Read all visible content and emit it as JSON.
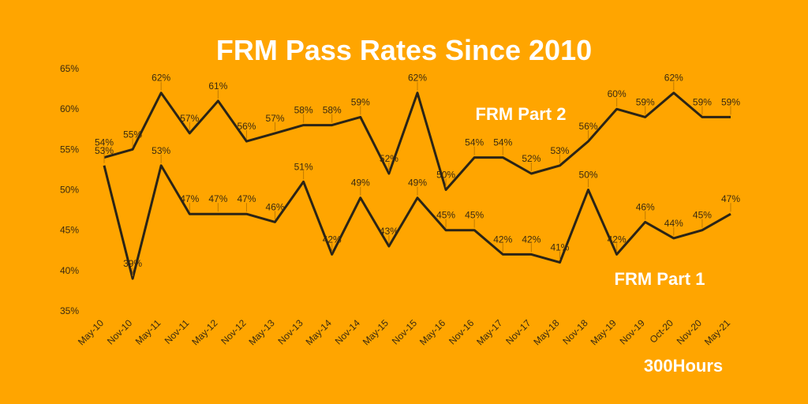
{
  "chart_data": {
    "type": "line",
    "title": "FRM Pass Rates Since 2010",
    "categories": [
      "May-10",
      "Nov-10",
      "May-11",
      "Nov-11",
      "May-12",
      "Nov-12",
      "May-13",
      "Nov-13",
      "May-14",
      "Nov-14",
      "May-15",
      "Nov-15",
      "May-16",
      "Nov-16",
      "May-17",
      "Nov-17",
      "May-18",
      "Nov-18",
      "May-19",
      "Nov-19",
      "Oct-20",
      "Nov-20",
      "May-21"
    ],
    "ylim": [
      35,
      65
    ],
    "yticks": [
      "35%",
      "40%",
      "45%",
      "50%",
      "55%",
      "60%",
      "65%"
    ],
    "series": [
      {
        "name": "FRM Part 2",
        "values": [
          54,
          55,
          62,
          57,
          61,
          56,
          57,
          58,
          58,
          59,
          52,
          62,
          50,
          54,
          54,
          52,
          53,
          56,
          60,
          59,
          62,
          59,
          59
        ],
        "labels": [
          "54%",
          "55%",
          "62%",
          "57%",
          "61%",
          "56%",
          "57%",
          "58%",
          "58%",
          "59%",
          "52%",
          "62%",
          "50%",
          "54%",
          "54%",
          "52%",
          "53%",
          "56%",
          "60%",
          "59%",
          "62%",
          "59%",
          "59%"
        ]
      },
      {
        "name": "FRM Part 1",
        "values": [
          53,
          39,
          53,
          47,
          47,
          47,
          46,
          51,
          42,
          49,
          43,
          49,
          45,
          45,
          42,
          42,
          41,
          50,
          42,
          46,
          44,
          45,
          47
        ],
        "labels": [
          "53%",
          "39%",
          "53%",
          "47%",
          "47%",
          "47%",
          "46%",
          "51%",
          "42%",
          "49%",
          "43%",
          "49%",
          "45%",
          "45%",
          "42%",
          "42%",
          "41%",
          "50%",
          "42%",
          "46%",
          "44%",
          "45%",
          "47%"
        ]
      }
    ],
    "grid": false,
    "line_color": "#2b2416",
    "background_color": "#FFA500"
  },
  "brand": "300Hours"
}
